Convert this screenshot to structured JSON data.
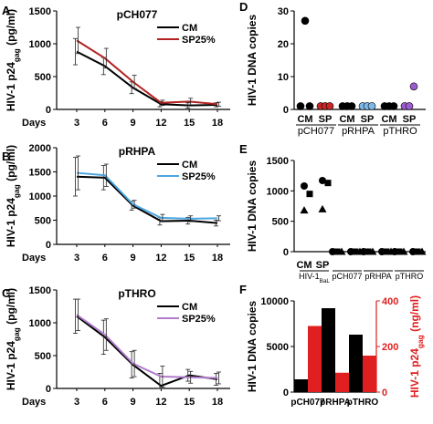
{
  "chart_data": [
    {
      "panel": "A",
      "type": "line",
      "title": "pCH077",
      "xlabel": "Days",
      "ylabel": "HIV-1 p24gag (pg/ml)",
      "x": [
        3,
        6,
        9,
        12,
        15,
        18
      ],
      "ylim": [
        0,
        1500
      ],
      "yticks": [
        0,
        500,
        1000,
        1500
      ],
      "legend": "top-right",
      "series": [
        {
          "name": "CM",
          "color": "#000000",
          "values": [
            880,
            660,
            330,
            80,
            60,
            70
          ],
          "err": [
            200,
            130,
            90,
            40,
            40,
            30
          ]
        },
        {
          "name": "SP25%",
          "color": "#b22222",
          "values": [
            1050,
            780,
            420,
            100,
            120,
            80
          ],
          "err": [
            200,
            150,
            100,
            40,
            50,
            30
          ]
        }
      ]
    },
    {
      "panel": "B",
      "type": "line",
      "title": "pRHPA",
      "xlabel": "Days",
      "ylabel": "HIV-1 p24gag (pg/ml)",
      "x": [
        3,
        6,
        9,
        12,
        15,
        18
      ],
      "ylim": [
        0,
        2000
      ],
      "yticks": [
        0,
        500,
        1000,
        1500,
        2000
      ],
      "legend": "top-right",
      "series": [
        {
          "name": "CM",
          "color": "#000000",
          "values": [
            1400,
            1380,
            800,
            480,
            490,
            440
          ],
          "err": [
            400,
            250,
            90,
            80,
            70,
            60
          ]
        },
        {
          "name": "SP25%",
          "color": "#4da6e0",
          "values": [
            1480,
            1430,
            830,
            550,
            530,
            540
          ],
          "err": [
            350,
            230,
            80,
            70,
            60,
            50
          ]
        }
      ]
    },
    {
      "panel": "C",
      "type": "line",
      "title": "pTHRO",
      "xlabel": "Days",
      "ylabel": "HIV-1 p24gag (pg/ml)",
      "x": [
        3,
        6,
        9,
        12,
        15,
        18
      ],
      "ylim": [
        0,
        1500
      ],
      "yticks": [
        0,
        500,
        1000,
        1500
      ],
      "legend": "top-right",
      "series": [
        {
          "name": "CM",
          "color": "#000000",
          "values": [
            1100,
            780,
            360,
            40,
            200,
            140
          ],
          "err": [
            260,
            260,
            200,
            190,
            90,
            90
          ]
        },
        {
          "name": "SP25%",
          "color": "#b07ccc",
          "values": [
            1120,
            820,
            380,
            180,
            170,
            160
          ],
          "err": [
            240,
            240,
            200,
            160,
            90,
            90
          ]
        }
      ]
    },
    {
      "panel": "D",
      "type": "scatter",
      "ylabel": "HIV-1 DNA copies",
      "ylim": [
        0,
        30
      ],
      "yticks": [
        0,
        10,
        20,
        30
      ],
      "groups": [
        "pCH077",
        "pRHPA",
        "pTHRO"
      ],
      "pair_labels": [
        "CM",
        "SP"
      ],
      "series": [
        {
          "name": "pCH077 CM",
          "group": 0,
          "pos": 0,
          "color": "#000000",
          "values": [
            1,
            27,
            1
          ]
        },
        {
          "name": "pCH077 SP",
          "group": 0,
          "pos": 1,
          "color": "#c62828",
          "values": [
            1,
            1,
            1
          ]
        },
        {
          "name": "pRHPA CM",
          "group": 1,
          "pos": 0,
          "color": "#000000",
          "values": [
            1,
            1,
            1
          ]
        },
        {
          "name": "pRHPA SP",
          "group": 1,
          "pos": 1,
          "color": "#7fb7e8",
          "values": [
            1,
            1,
            1
          ]
        },
        {
          "name": "pTHRO CM",
          "group": 2,
          "pos": 0,
          "color": "#000000",
          "values": [
            1,
            1,
            1
          ]
        },
        {
          "name": "pTHRO SP",
          "group": 2,
          "pos": 1,
          "color": "#9c5ccf",
          "values": [
            1,
            1,
            7
          ]
        }
      ]
    },
    {
      "panel": "E",
      "type": "scatter",
      "ylabel": "HIV-1 DNA copies",
      "ylim": [
        0,
        1500
      ],
      "yticks": [
        0,
        500,
        1000,
        1500
      ],
      "groups": [
        "HIV-1BaL",
        "pCH077",
        "pRHPA",
        "pTHRO"
      ],
      "pair_labels": [
        "CM",
        "SP"
      ],
      "markers": [
        "circle",
        "square",
        "triangle"
      ],
      "series": [
        {
          "group": 0,
          "pos": 0,
          "values": [
            1080,
            950,
            680
          ]
        },
        {
          "group": 0,
          "pos": 1,
          "values": [
            1170,
            1130,
            700
          ]
        },
        {
          "group": 1,
          "pos": 0,
          "values": [
            0,
            0,
            0
          ]
        },
        {
          "group": 1,
          "pos": 1,
          "values": [
            0,
            0,
            0
          ]
        },
        {
          "group": 2,
          "pos": 0,
          "values": [
            0,
            0,
            0
          ]
        },
        {
          "group": 2,
          "pos": 1,
          "values": [
            0,
            0,
            0
          ]
        },
        {
          "group": 3,
          "pos": 0,
          "values": [
            0,
            0,
            0
          ]
        },
        {
          "group": 3,
          "pos": 1,
          "values": [
            0,
            0,
            0
          ]
        }
      ]
    },
    {
      "panel": "F",
      "type": "bar",
      "categories": [
        "pCH077",
        "pRHPA",
        "pTHRO"
      ],
      "ylabel": "HIV-1 DNA copies",
      "y2label": "HIV-1 p24gag (ng/ml)",
      "ylim": [
        0,
        10000
      ],
      "yticks": [
        0,
        5000,
        10000
      ],
      "y2lim": [
        0,
        400
      ],
      "y2ticks": [
        0,
        200,
        400
      ],
      "series": [
        {
          "name": "HIV-1 DNA copies",
          "axis": "left",
          "color": "#000000",
          "values": [
            1400,
            9200,
            6300
          ]
        },
        {
          "name": "HIV-1 p24gag",
          "axis": "right",
          "color": "#e02020",
          "values": [
            290,
            85,
            160
          ]
        }
      ]
    }
  ]
}
